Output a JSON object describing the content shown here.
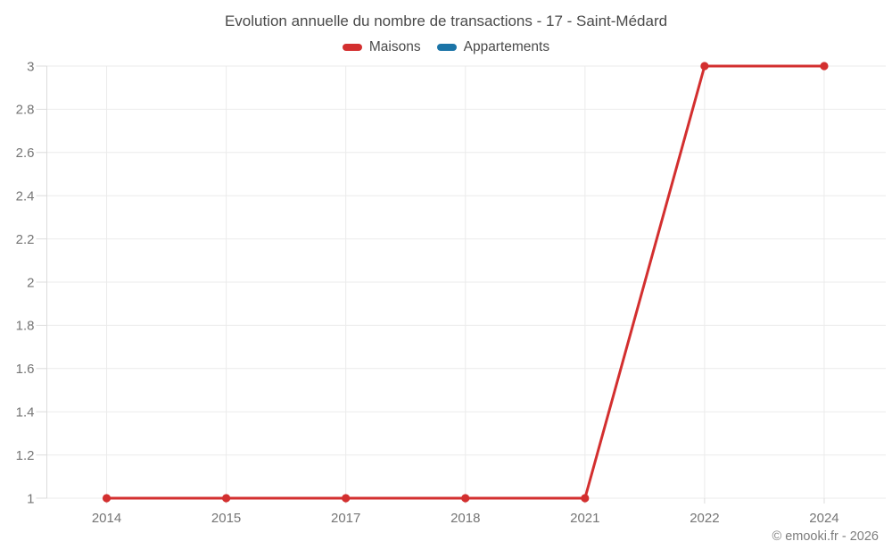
{
  "header": {
    "title": "Evolution annuelle du nombre de transactions - 17 - Saint-Médard"
  },
  "footer": {
    "copyright": "© emooki.fr - 2026"
  },
  "chart_data": {
    "type": "line",
    "title": "Evolution annuelle du nombre de transactions - 17 - Saint-Médard",
    "categories": [
      "2014",
      "2015",
      "2017",
      "2018",
      "2021",
      "2022",
      "2024"
    ],
    "series": [
      {
        "name": "Maisons",
        "color": "#d32f2f",
        "values": [
          1,
          1,
          1,
          1,
          1,
          3,
          3
        ]
      },
      {
        "name": "Appartements",
        "color": "#1b74a7",
        "values": []
      }
    ],
    "xlabel": "",
    "ylabel": "",
    "ylim": [
      1,
      3
    ],
    "ytick_step": 0.2,
    "grid": true,
    "legend_position": "top",
    "style": {
      "grid_color": "#ebebeb",
      "axis_color": "#dcdcdc",
      "tick_label_color": "#757575",
      "title_color": "#4a4a4a",
      "background": "#ffffff"
    }
  }
}
